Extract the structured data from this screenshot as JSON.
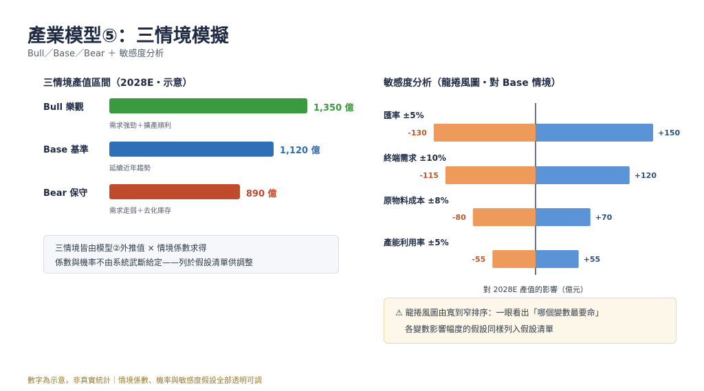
{
  "title": "產業模型⑤：三情境模擬",
  "subtitle": "Bull／Base／Bear ＋ 敏感度分析",
  "left_heading": "三情境產值區間（2028E・示意）",
  "right_heading": "敏感度分析（龍捲風圖・對 Base 情境）",
  "scenarios": [
    {
      "label": "Bull 樂觀",
      "value": 1350,
      "value_label": "1,350 億",
      "note": "需求強勁＋擴產順利",
      "color": "#3a9a3e"
    },
    {
      "label": "Base 基準",
      "value": 1120,
      "value_label": "1,120 億",
      "note": "延續近年趨勢",
      "color": "#2e6fb7"
    },
    {
      "label": "Bear 保守",
      "value": 890,
      "value_label": "890 億",
      "note": "需求走弱＋去化庫存",
      "color": "#bf4a2c"
    }
  ],
  "note_box": {
    "line1": "三情境皆由模型②外推值 × 情境係數求得",
    "line2": "係數與機率不由系統武斷給定——列於假設清單供調整"
  },
  "warning_box": {
    "icon": "warning-icon",
    "line1": "龍捲風圖由寬到窄排序：一眼看出「哪個變數最要命」",
    "line2": "各變數影響幅度的假設同樣列入假設清單"
  },
  "footer": "數字為示意，非真實統計｜情境係數、機率與敏感度假設全部透明可調",
  "chart_data": [
    {
      "type": "bar",
      "orientation": "horizontal",
      "categories": [
        "Bull 樂觀",
        "Base 基準",
        "Bear 保守"
      ],
      "values": [
        1350,
        1120,
        890
      ],
      "unit": "億",
      "title": "三情境產值區間（2028E・示意）"
    },
    {
      "type": "bar",
      "orientation": "horizontal",
      "subtype": "tornado",
      "title": "敏感度分析（龍捲風圖・對 Base 情境）",
      "xlabel": "對 2028E 產值的影響（億元）",
      "categories": [
        "匯率 ±5%",
        "終端需求 ±10%",
        "原物料成本 ±8%",
        "產能利用率 ±5%"
      ],
      "series": [
        {
          "values": [
            -130,
            -115,
            -80,
            -55
          ],
          "labels": [
            "-130",
            "-115",
            "-80",
            "-55"
          ],
          "color": "#ee9a5a"
        },
        {
          "values": [
            150,
            120,
            70,
            55
          ],
          "labels": [
            "+150",
            "+120",
            "+70",
            "+55"
          ],
          "color": "#5a93d6"
        }
      ]
    }
  ]
}
